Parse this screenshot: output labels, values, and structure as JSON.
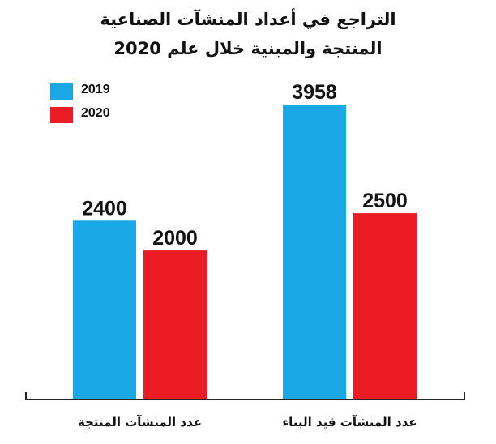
{
  "chart_data": {
    "type": "bar",
    "title": "التراجع في أعداد المنشآت الصناعية",
    "subtitle": "المنتجة والمبنية خلال علم 2020",
    "categories": [
      "عدد المنشآت المنتجة",
      "عدد المنشآت قيد البناء"
    ],
    "series": [
      {
        "name": "2019",
        "values": [
          2400,
          3958
        ],
        "color": "#1aa7e6"
      },
      {
        "name": "2020",
        "values": [
          2000,
          2500
        ],
        "color": "#ec1c24"
      }
    ],
    "ylim": [
      0,
      3958
    ],
    "grid": false,
    "legend_position": "top-left",
    "data_labels": true
  }
}
